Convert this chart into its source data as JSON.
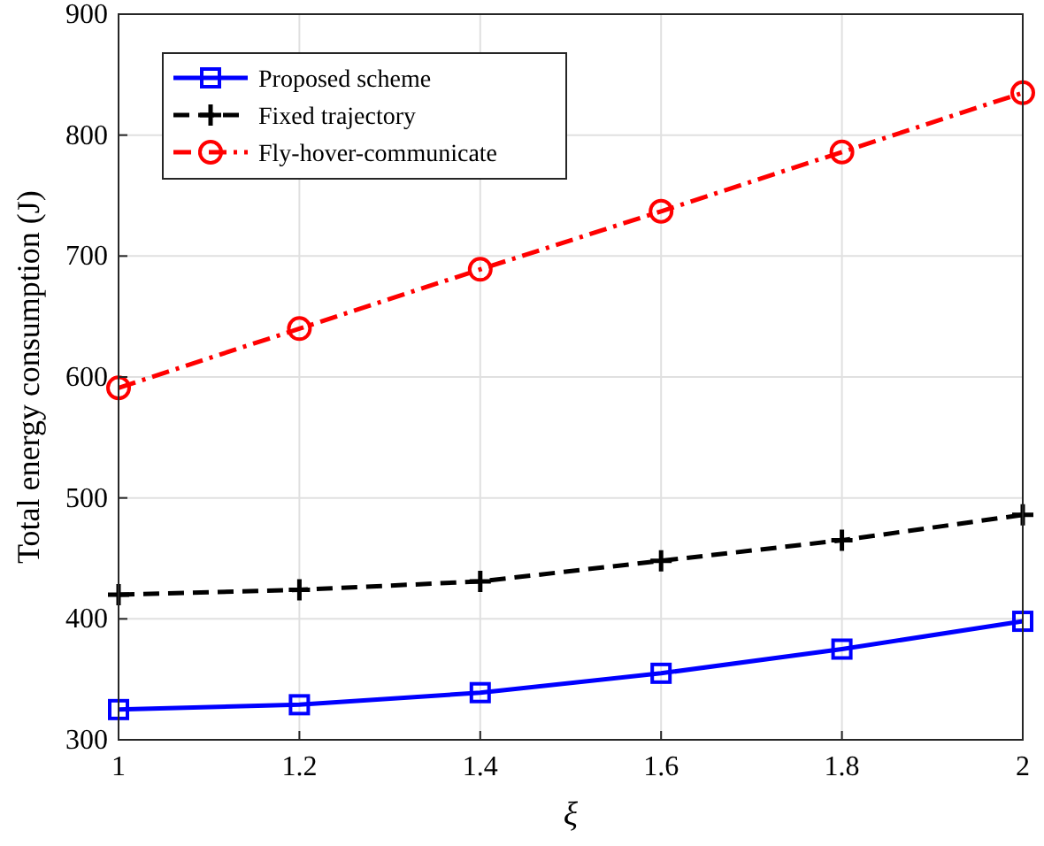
{
  "chart_data": {
    "type": "line",
    "xlabel": "ξ",
    "ylabel": "Total energy consumption (J)",
    "x": [
      1,
      1.2,
      1.4,
      1.6,
      1.8,
      2
    ],
    "series": [
      {
        "name": "Proposed scheme",
        "color": "#0000ff",
        "values": [
          325,
          329,
          339,
          355,
          375,
          398
        ],
        "marker": "square",
        "line_style": "solid"
      },
      {
        "name": "Fixed trajectory",
        "color": "#000000",
        "values": [
          420,
          424,
          431,
          448,
          465,
          486
        ],
        "marker": "cross",
        "line_style": "dashed"
      },
      {
        "name": "Fly-hover-communicate",
        "color": "#ff0000",
        "values": [
          591,
          640,
          689,
          737,
          786,
          835
        ],
        "marker": "circle",
        "line_style": "dashdot"
      }
    ],
    "xlim": [
      1,
      2
    ],
    "xticks": [
      1,
      1.2,
      1.4,
      1.6,
      1.8,
      2
    ],
    "ylim": [
      300,
      900
    ],
    "yticks": [
      300,
      400,
      500,
      600,
      700,
      800,
      900
    ],
    "grid": true,
    "legend": "top left"
  }
}
